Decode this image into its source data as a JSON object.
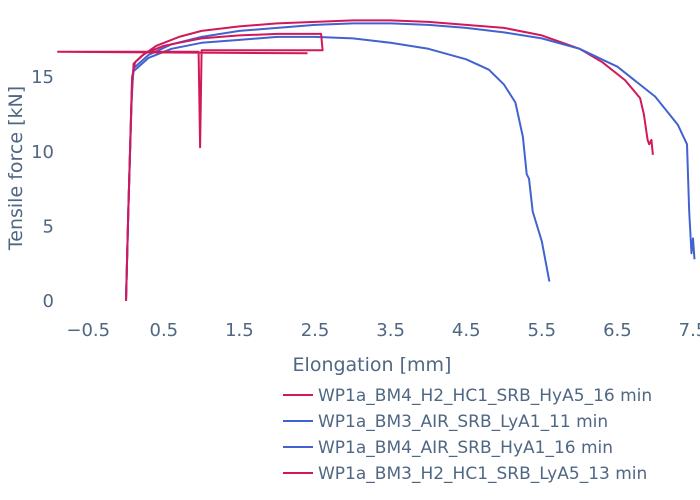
{
  "chart_data": {
    "type": "line",
    "xlabel": "Elongation [mm]",
    "ylabel": "Tensile force [kN]",
    "xlim": [
      -0.9,
      7.5
    ],
    "ylim": [
      -0.6,
      19.5
    ],
    "x_ticks": [
      {
        "value": -0.5,
        "label": "−0.5"
      },
      {
        "value": 0.5,
        "label": "0.5"
      },
      {
        "value": 1.5,
        "label": "1.5"
      },
      {
        "value": 2.5,
        "label": "2.5"
      },
      {
        "value": 3.5,
        "label": "3.5"
      },
      {
        "value": 4.5,
        "label": "4.5"
      },
      {
        "value": 5.5,
        "label": "5.5"
      },
      {
        "value": 6.5,
        "label": "6.5"
      },
      {
        "value": 7.5,
        "label": "7.5"
      }
    ],
    "y_ticks": [
      {
        "value": 0,
        "label": "0"
      },
      {
        "value": 5,
        "label": "5"
      },
      {
        "value": 10,
        "label": "10"
      },
      {
        "value": 15,
        "label": "15"
      }
    ],
    "grid": false,
    "legend_position": "bottom-right",
    "series": [
      {
        "name": "WP1a_BM4_H2_HC1_SRB_HyA5_16 min",
        "color": "#d1195a",
        "points": [
          [
            0.0,
            0.0
          ],
          [
            0.03,
            6.0
          ],
          [
            0.07,
            13.0
          ],
          [
            0.1,
            15.9
          ],
          [
            0.2,
            16.4
          ],
          [
            0.4,
            17.1
          ],
          [
            0.7,
            17.7
          ],
          [
            1.0,
            18.1
          ],
          [
            1.5,
            18.4
          ],
          [
            2.0,
            18.6
          ],
          [
            2.5,
            18.7
          ],
          [
            3.0,
            18.8
          ],
          [
            3.5,
            18.8
          ],
          [
            4.0,
            18.7
          ],
          [
            4.5,
            18.5
          ],
          [
            5.0,
            18.3
          ],
          [
            5.5,
            17.8
          ],
          [
            6.0,
            16.9
          ],
          [
            6.3,
            16.0
          ],
          [
            6.6,
            14.8
          ],
          [
            6.8,
            13.6
          ],
          [
            6.85,
            12.5
          ],
          [
            6.9,
            10.8
          ],
          [
            6.92,
            10.5
          ],
          [
            6.95,
            10.8
          ],
          [
            6.97,
            9.8
          ]
        ]
      },
      {
        "name": "WP1a_BM3_AIR_SRB_LyA1_11 min",
        "color": "#4263cf",
        "points": [
          [
            0.0,
            0.0
          ],
          [
            0.03,
            6.0
          ],
          [
            0.08,
            14.5
          ],
          [
            0.1,
            15.4
          ],
          [
            0.3,
            16.3
          ],
          [
            0.6,
            16.9
          ],
          [
            1.0,
            17.3
          ],
          [
            1.5,
            17.5
          ],
          [
            2.0,
            17.7
          ],
          [
            2.5,
            17.7
          ],
          [
            3.0,
            17.6
          ],
          [
            3.5,
            17.3
          ],
          [
            4.0,
            16.9
          ],
          [
            4.5,
            16.2
          ],
          [
            4.8,
            15.5
          ],
          [
            5.0,
            14.5
          ],
          [
            5.15,
            13.3
          ],
          [
            5.25,
            11.0
          ],
          [
            5.3,
            8.5
          ],
          [
            5.33,
            8.2
          ],
          [
            5.38,
            6.0
          ],
          [
            5.5,
            4.0
          ],
          [
            5.6,
            1.3
          ]
        ]
      },
      {
        "name": "WP1a_BM4_AIR_SRB_HyA1_16 min",
        "color": "#4263cf",
        "points": [
          [
            0.0,
            0.0
          ],
          [
            0.03,
            6.0
          ],
          [
            0.08,
            14.8
          ],
          [
            0.1,
            15.6
          ],
          [
            0.3,
            16.5
          ],
          [
            0.6,
            17.2
          ],
          [
            1.0,
            17.7
          ],
          [
            1.5,
            18.1
          ],
          [
            2.0,
            18.3
          ],
          [
            2.5,
            18.5
          ],
          [
            3.0,
            18.6
          ],
          [
            3.5,
            18.6
          ],
          [
            4.0,
            18.5
          ],
          [
            4.5,
            18.3
          ],
          [
            5.0,
            18.0
          ],
          [
            5.5,
            17.6
          ],
          [
            6.0,
            16.9
          ],
          [
            6.5,
            15.7
          ],
          [
            7.0,
            13.7
          ],
          [
            7.3,
            11.8
          ],
          [
            7.42,
            10.5
          ],
          [
            7.45,
            6.0
          ],
          [
            7.48,
            3.2
          ],
          [
            7.5,
            4.2
          ],
          [
            7.52,
            2.8
          ]
        ]
      },
      {
        "name": "WP1a_BM3_H2_HC1_SRB_LyA5_13 min",
        "color": "#d1195a",
        "points": [
          [
            0.0,
            0.0
          ],
          [
            0.03,
            6.0
          ],
          [
            0.08,
            15.0
          ],
          [
            0.12,
            16.0
          ],
          [
            0.25,
            16.6
          ],
          [
            0.5,
            17.1
          ],
          [
            0.8,
            17.4
          ],
          [
            1.0,
            17.6
          ],
          [
            1.5,
            17.8
          ],
          [
            2.0,
            17.9
          ],
          [
            2.5,
            17.9
          ],
          [
            2.58,
            17.9
          ],
          [
            2.6,
            16.8
          ],
          [
            1.0,
            16.8
          ],
          [
            0.98,
            10.3
          ],
          [
            0.96,
            16.7
          ],
          [
            -0.9,
            16.7
          ],
          [
            2.4,
            16.6
          ]
        ]
      }
    ]
  }
}
